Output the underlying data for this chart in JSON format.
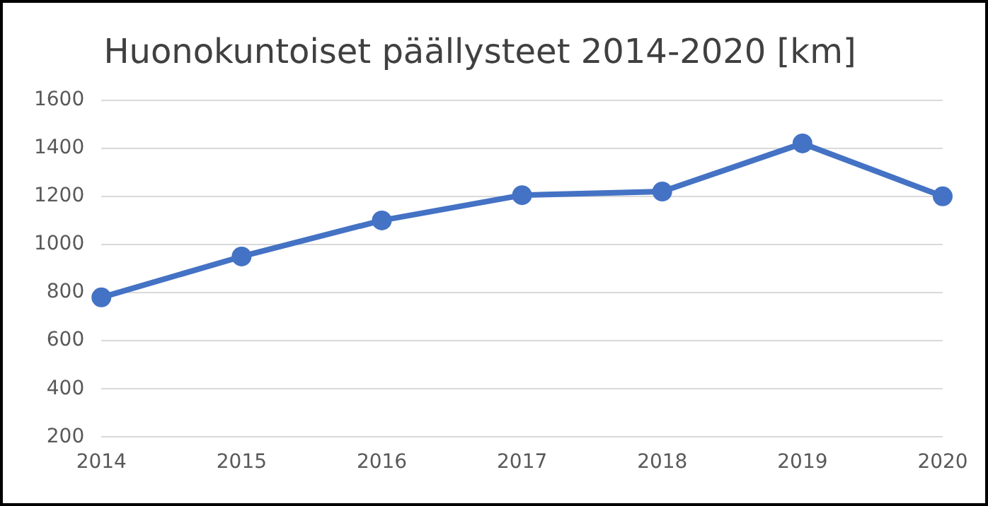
{
  "chart_data": {
    "type": "line",
    "title": "Huonokuntoiset päällysteet 2014-2020 [km]",
    "categories": [
      "2014",
      "2015",
      "2016",
      "2017",
      "2018",
      "2019",
      "2020"
    ],
    "series": [
      {
        "color": "#4472c4",
        "values": [
          780,
          950,
          1100,
          1205,
          1220,
          1420,
          1200
        ]
      }
    ],
    "ylim": [
      200,
      1600
    ],
    "yticks": [
      200,
      400,
      600,
      800,
      1000,
      1200,
      1400,
      1600
    ],
    "grid": "y",
    "legend": false,
    "marker": "circle",
    "line_style": "solid"
  }
}
